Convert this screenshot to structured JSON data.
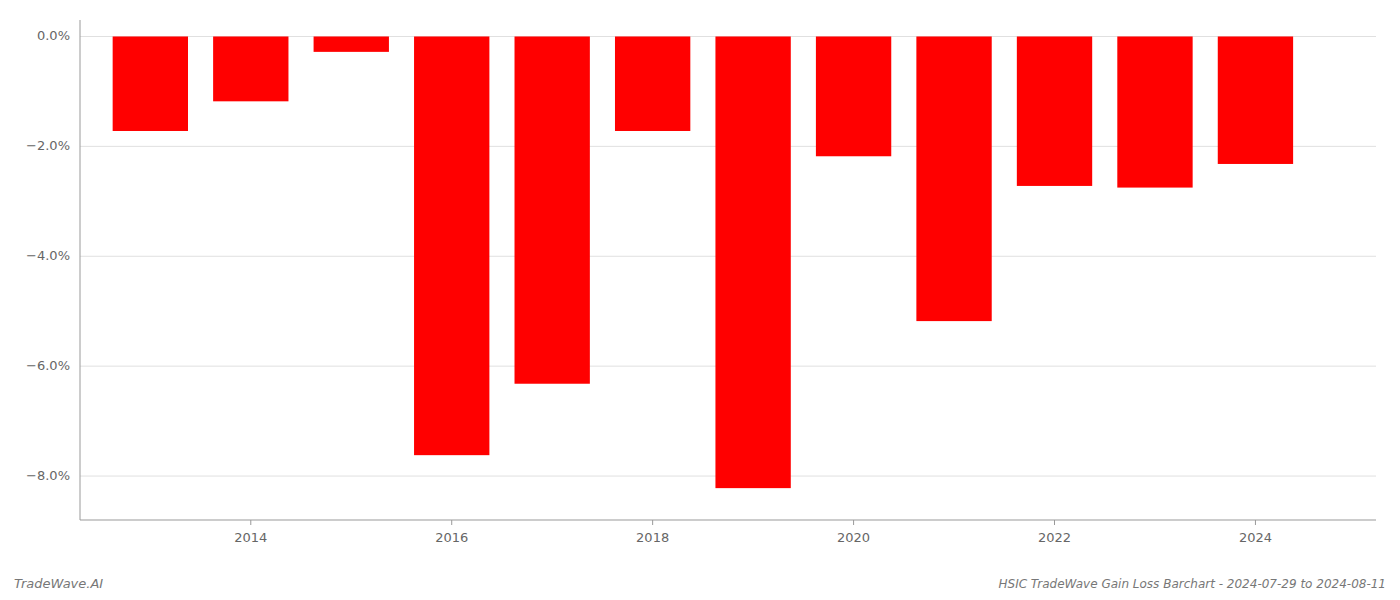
{
  "chart_data": {
    "type": "bar",
    "title": "HSIC TradeWave Gain Loss Barchart - 2024-07-29 to 2024-08-11",
    "annotations": [
      "TradeWave.AI"
    ],
    "x": [
      2013,
      2014,
      2015,
      2016,
      2017,
      2018,
      2019,
      2020,
      2021,
      2022,
      2023,
      2024
    ],
    "values": [
      -1.72,
      -1.18,
      -0.28,
      -7.62,
      -6.32,
      -1.72,
      -8.22,
      -2.18,
      -5.18,
      -2.72,
      -2.75,
      -2.32
    ],
    "color": "#ff0000",
    "xlim": [
      2012.3,
      2025.2
    ],
    "xticks": [
      2014,
      2016,
      2018,
      2020,
      2022,
      2024
    ],
    "ylim": [
      -8.8,
      0.3
    ],
    "yticks": [
      {
        "value": 0.0,
        "label": "0.0%"
      },
      {
        "value": -2.0,
        "label": "−2.0%"
      },
      {
        "value": -4.0,
        "label": "−4.0%"
      },
      {
        "value": -6.0,
        "label": "−6.0%"
      },
      {
        "value": -8.0,
        "label": "−8.0%"
      }
    ],
    "grid": true
  }
}
